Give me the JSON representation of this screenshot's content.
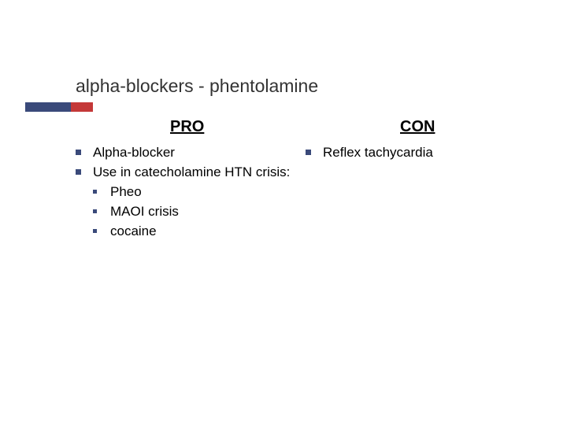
{
  "title": "alpha-blockers - phentolamine",
  "colors": {
    "accent_blue": "#3a4a7a",
    "accent_red": "#c43838",
    "text": "#000000",
    "title_text": "#333333",
    "background": "#ffffff"
  },
  "columns": {
    "left": {
      "heading": "PRO",
      "items": [
        {
          "text": "Alpha-blocker"
        },
        {
          "text": "Use in catecholamine HTN crisis:",
          "sub": [
            {
              "text": "Pheo"
            },
            {
              "text": "MAOI crisis"
            },
            {
              "text": "cocaine"
            }
          ]
        }
      ]
    },
    "right": {
      "heading": "CON",
      "items": [
        {
          "text": "Reflex tachycardia"
        }
      ]
    }
  }
}
